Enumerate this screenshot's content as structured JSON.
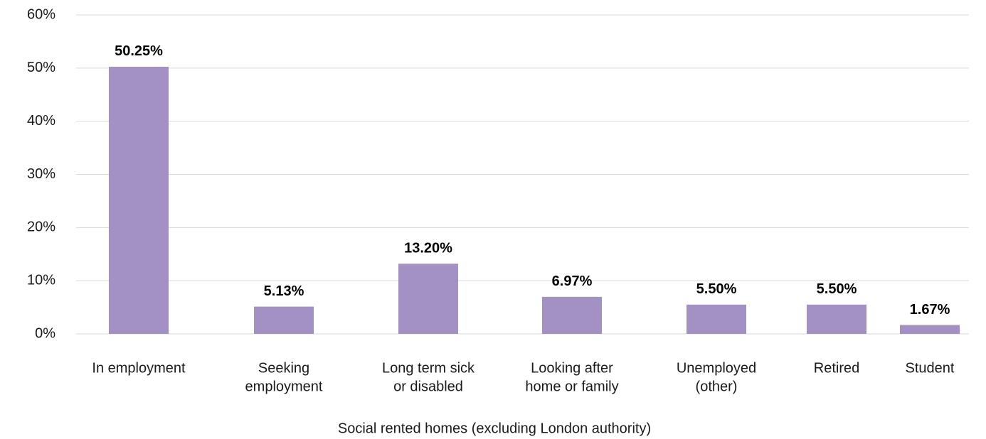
{
  "chart_data": {
    "type": "bar",
    "x_label": "Social rented homes (excluding London authority)",
    "categories": [
      [
        "In employment"
      ],
      [
        "Seeking",
        "employment"
      ],
      [
        "Long term sick",
        "or disabled"
      ],
      [
        "Looking after",
        "home or family"
      ],
      [
        "Unemployed",
        "(other)"
      ],
      [
        "Retired"
      ],
      [
        "Student"
      ]
    ],
    "values": [
      50.25,
      5.13,
      13.2,
      6.97,
      5.5,
      5.5,
      1.67
    ],
    "value_labels": [
      "50.25%",
      "5.13%",
      "13.20%",
      "6.97%",
      "5.50%",
      "5.50%",
      "1.67%"
    ],
    "color": "#a391c4",
    "ylim": [
      0,
      60
    ],
    "yticks": [
      {
        "value": 0,
        "label": "0%"
      },
      {
        "value": 10,
        "label": "10%"
      },
      {
        "value": 20,
        "label": "20%"
      },
      {
        "value": 30,
        "label": "30%"
      },
      {
        "value": 40,
        "label": "40%"
      },
      {
        "value": 50,
        "label": "50%"
      },
      {
        "value": 60,
        "label": "60%"
      }
    ],
    "grid": true
  }
}
